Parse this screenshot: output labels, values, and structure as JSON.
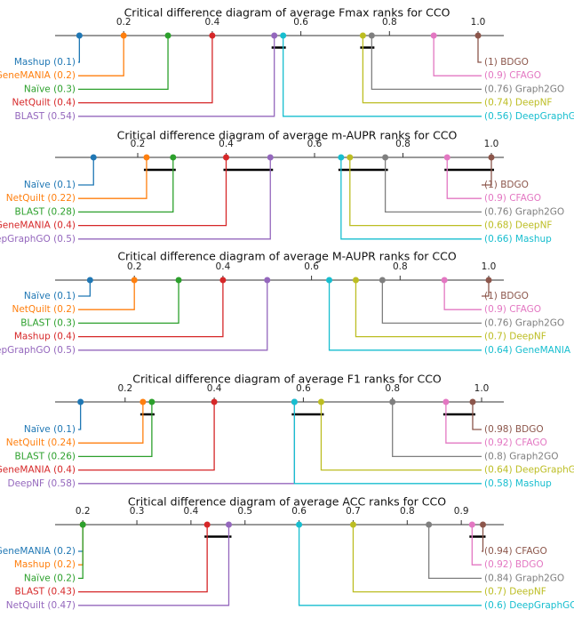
{
  "chart_data": [
    {
      "type": "critical-difference-diagram",
      "title": "Critical difference diagram of average Fmax ranks for CCO",
      "xlim": [
        0.0,
        1.15
      ],
      "ticks": [
        0.2,
        0.4,
        0.6,
        0.8,
        1.0
      ],
      "tick_labels": [
        "0.2",
        "0.4",
        "0.6",
        "0.8",
        "1.0"
      ],
      "methods": [
        {
          "name": "Mashup",
          "rank": 0.1,
          "label": "0.1",
          "color": "#1f77b4"
        },
        {
          "name": "GeneMANIA",
          "rank": 0.2,
          "label": "0.2",
          "color": "#ff7f0e"
        },
        {
          "name": "Naïve",
          "rank": 0.3,
          "label": "0.3",
          "color": "#2ca02c"
        },
        {
          "name": "NetQuilt",
          "rank": 0.4,
          "label": "0.4",
          "color": "#d62728"
        },
        {
          "name": "BLAST",
          "rank": 0.54,
          "label": "0.54",
          "color": "#9467bd"
        },
        {
          "name": "DeepGraphGO",
          "rank": 0.56,
          "label": "0.56",
          "color": "#17becf"
        },
        {
          "name": "DeepNF",
          "rank": 0.74,
          "label": "0.74",
          "color": "#bcbd22"
        },
        {
          "name": "Graph2GO",
          "rank": 0.76,
          "label": "0.76",
          "color": "#7f7f7f"
        },
        {
          "name": "CFAGO",
          "rank": 0.9,
          "label": "0.9",
          "color": "#e377c2"
        },
        {
          "name": "BDGO",
          "rank": 1.0,
          "label": "1",
          "color": "#8c564b"
        }
      ],
      "cliques": [
        [
          0.54,
          0.56
        ],
        [
          0.74,
          0.76
        ]
      ]
    },
    {
      "type": "critical-difference-diagram",
      "title": "Critical difference diagram of average m-AUPR ranks for CCO",
      "xlim": [
        0.0,
        1.15
      ],
      "ticks": [
        0.2,
        0.4,
        0.6,
        0.8,
        1.0
      ],
      "tick_labels": [
        "0.2",
        "0.4",
        "0.6",
        "0.8",
        "1.0"
      ],
      "methods": [
        {
          "name": "Naïve",
          "rank": 0.1,
          "label": "0.1",
          "color": "#1f77b4"
        },
        {
          "name": "NetQuilt",
          "rank": 0.22,
          "label": "0.22",
          "color": "#ff7f0e"
        },
        {
          "name": "BLAST",
          "rank": 0.28,
          "label": "0.28",
          "color": "#2ca02c"
        },
        {
          "name": "GeneMANIA",
          "rank": 0.4,
          "label": "0.4",
          "color": "#d62728"
        },
        {
          "name": "DeepGraphGO",
          "rank": 0.5,
          "label": "0.5",
          "color": "#9467bd"
        },
        {
          "name": "Mashup",
          "rank": 0.66,
          "label": "0.66",
          "color": "#17becf"
        },
        {
          "name": "DeepNF",
          "rank": 0.68,
          "label": "0.68",
          "color": "#bcbd22"
        },
        {
          "name": "Graph2GO",
          "rank": 0.76,
          "label": "0.76",
          "color": "#7f7f7f"
        },
        {
          "name": "CFAGO",
          "rank": 0.9,
          "label": "0.9",
          "color": "#e377c2"
        },
        {
          "name": "BDGO",
          "rank": 1.0,
          "label": "1",
          "color": "#8c564b"
        }
      ],
      "cliques": [
        [
          0.22,
          0.28
        ],
        [
          0.4,
          0.5
        ],
        [
          0.66,
          0.76
        ],
        [
          0.9,
          1.0
        ]
      ]
    },
    {
      "type": "critical-difference-diagram",
      "title": "Critical difference diagram of average M-AUPR ranks for CCO",
      "xlim": [
        0.0,
        1.15
      ],
      "ticks": [
        0.2,
        0.4,
        0.6,
        0.8,
        1.0
      ],
      "tick_labels": [
        "0.2",
        "0.4",
        "0.6",
        "0.8",
        "1.0"
      ],
      "methods": [
        {
          "name": "Naïve",
          "rank": 0.1,
          "label": "0.1",
          "color": "#1f77b4"
        },
        {
          "name": "NetQuilt",
          "rank": 0.2,
          "label": "0.2",
          "color": "#ff7f0e"
        },
        {
          "name": "BLAST",
          "rank": 0.3,
          "label": "0.3",
          "color": "#2ca02c"
        },
        {
          "name": "Mashup",
          "rank": 0.4,
          "label": "0.4",
          "color": "#d62728"
        },
        {
          "name": "DeepGraphGO",
          "rank": 0.5,
          "label": "0.5",
          "color": "#9467bd"
        },
        {
          "name": "GeneMANIA",
          "rank": 0.64,
          "label": "0.64",
          "color": "#17becf"
        },
        {
          "name": "DeepNF",
          "rank": 0.7,
          "label": "0.7",
          "color": "#bcbd22"
        },
        {
          "name": "Graph2GO",
          "rank": 0.76,
          "label": "0.76",
          "color": "#7f7f7f"
        },
        {
          "name": "CFAGO",
          "rank": 0.9,
          "label": "0.9",
          "color": "#e377c2"
        },
        {
          "name": "BDGO",
          "rank": 1.0,
          "label": "1",
          "color": "#8c564b"
        }
      ],
      "cliques": []
    },
    {
      "type": "critical-difference-diagram",
      "title": "Critical difference diagram of average F1 ranks for CCO",
      "xlim": [
        0.0,
        1.15
      ],
      "ticks": [
        0.2,
        0.4,
        0.6,
        0.8,
        1.0
      ],
      "tick_labels": [
        "0.2",
        "0.4",
        "0.6",
        "0.8",
        "1.0"
      ],
      "methods": [
        {
          "name": "Naïve",
          "rank": 0.1,
          "label": "0.1",
          "color": "#1f77b4"
        },
        {
          "name": "NetQuilt",
          "rank": 0.24,
          "label": "0.24",
          "color": "#ff7f0e"
        },
        {
          "name": "BLAST",
          "rank": 0.26,
          "label": "0.26",
          "color": "#2ca02c"
        },
        {
          "name": "GeneMANIA",
          "rank": 0.4,
          "label": "0.4",
          "color": "#d62728"
        },
        {
          "name": "DeepNF",
          "rank": 0.58,
          "label": "0.58",
          "color": "#9467bd"
        },
        {
          "name": "Mashup",
          "rank": 0.58,
          "label": "0.58",
          "color": "#17becf"
        },
        {
          "name": "DeepGraphGO",
          "rank": 0.64,
          "label": "0.64",
          "color": "#bcbd22"
        },
        {
          "name": "Graph2GO",
          "rank": 0.8,
          "label": "0.8",
          "color": "#7f7f7f"
        },
        {
          "name": "CFAGO",
          "rank": 0.92,
          "label": "0.92",
          "color": "#e377c2"
        },
        {
          "name": "BDGO",
          "rank": 0.98,
          "label": "0.98",
          "color": "#8c564b"
        }
      ],
      "cliques": [
        [
          0.24,
          0.26
        ],
        [
          0.58,
          0.64
        ],
        [
          0.92,
          0.98
        ]
      ]
    },
    {
      "type": "critical-difference-diagram",
      "title": "Critical difference diagram of average ACC ranks for CCO",
      "xlim": [
        0.0,
        1.15
      ],
      "ticks": [
        0.2,
        0.3,
        0.4,
        0.5,
        0.6,
        0.7,
        0.8,
        0.9
      ],
      "tick_labels": [
        "0.2",
        "0.3",
        "0.4",
        "0.5",
        "0.6",
        "0.7",
        "0.8",
        "0.9"
      ],
      "methods": [
        {
          "name": "GeneMANIA",
          "rank": 0.2,
          "label": "0.2",
          "color": "#1f77b4"
        },
        {
          "name": "Mashup",
          "rank": 0.2,
          "label": "0.2",
          "color": "#ff7f0e"
        },
        {
          "name": "Naïve",
          "rank": 0.2,
          "label": "0.2",
          "color": "#2ca02c"
        },
        {
          "name": "BLAST",
          "rank": 0.43,
          "label": "0.43",
          "color": "#d62728"
        },
        {
          "name": "NetQuilt",
          "rank": 0.47,
          "label": "0.47",
          "color": "#9467bd"
        },
        {
          "name": "DeepGraphGO",
          "rank": 0.6,
          "label": "0.6",
          "color": "#17becf"
        },
        {
          "name": "DeepNF",
          "rank": 0.7,
          "label": "0.7",
          "color": "#bcbd22"
        },
        {
          "name": "Graph2GO",
          "rank": 0.84,
          "label": "0.84",
          "color": "#7f7f7f"
        },
        {
          "name": "BDGO",
          "rank": 0.92,
          "label": "0.92",
          "color": "#e377c2"
        },
        {
          "name": "CFAGO",
          "rank": 0.94,
          "label": "0.94",
          "color": "#8c564b"
        }
      ],
      "cliques": [
        [
          0.43,
          0.47
        ],
        [
          0.92,
          0.94
        ]
      ]
    }
  ]
}
